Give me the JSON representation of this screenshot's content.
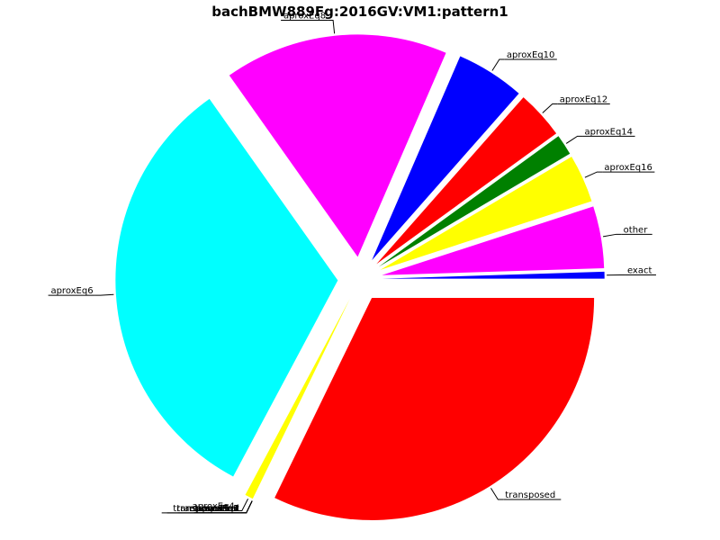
{
  "chart_data": {
    "type": "pie",
    "title": "bachBMW889Fg:2016GV:VM1:pattern1",
    "start_angle_deg": 0,
    "direction": "counterclockwise",
    "slices": [
      {
        "label": "exact",
        "value": 0.5,
        "color": "#0000ff",
        "explode": 0.1
      },
      {
        "label": "other",
        "value": 4.5,
        "color": "#ff00ff",
        "explode": 0.1
      },
      {
        "label": "aproxEq16",
        "value": 3.5,
        "color": "#ffff00",
        "explode": 0.1
      },
      {
        "label": "aproxEq14",
        "value": 1.5,
        "color": "#008000",
        "explode": 0.1
      },
      {
        "label": "aproxEq12",
        "value": 3.5,
        "color": "#ff0000",
        "explode": 0.1
      },
      {
        "label": "aproxEq10",
        "value": 5.0,
        "color": "#0000ff",
        "explode": 0.1
      },
      {
        "label": "aproxEq8",
        "value": 16.3,
        "color": "#ff00ff",
        "explode": 0.1
      },
      {
        "label": "aproxEq6",
        "value": 32.4,
        "color": "#00ffff",
        "explode": 0.1
      },
      {
        "label": "aproxEq4",
        "value": 0.6,
        "color": "#ffff00",
        "explode": 0.1
      },
      {
        "label": "aproxEq3",
        "value": 0.0,
        "color": "#008000",
        "explode": 0.1
      },
      {
        "label": "aproxEq2",
        "value": 0.0,
        "color": "#ff0000",
        "explode": 0.1
      },
      {
        "label": "aproxEq1",
        "value": 0.0,
        "color": "#0000ff",
        "explode": 0.1
      },
      {
        "label": "retrograded",
        "value": 0.0,
        "color": "#ff00ff",
        "explode": 0.1
      },
      {
        "label": "inverted",
        "value": 0.0,
        "color": "#00ffff",
        "explode": 0.1
      },
      {
        "label": "tranposed-inv",
        "value": 0.0,
        "color": "#ffff00",
        "explode": 0.1
      },
      {
        "label": "transposed-ret",
        "value": 0.0,
        "color": "#008000",
        "explode": 0.1
      },
      {
        "label": "transposed",
        "value": 32.2,
        "color": "#ff0000",
        "explode": 0.1
      }
    ]
  }
}
